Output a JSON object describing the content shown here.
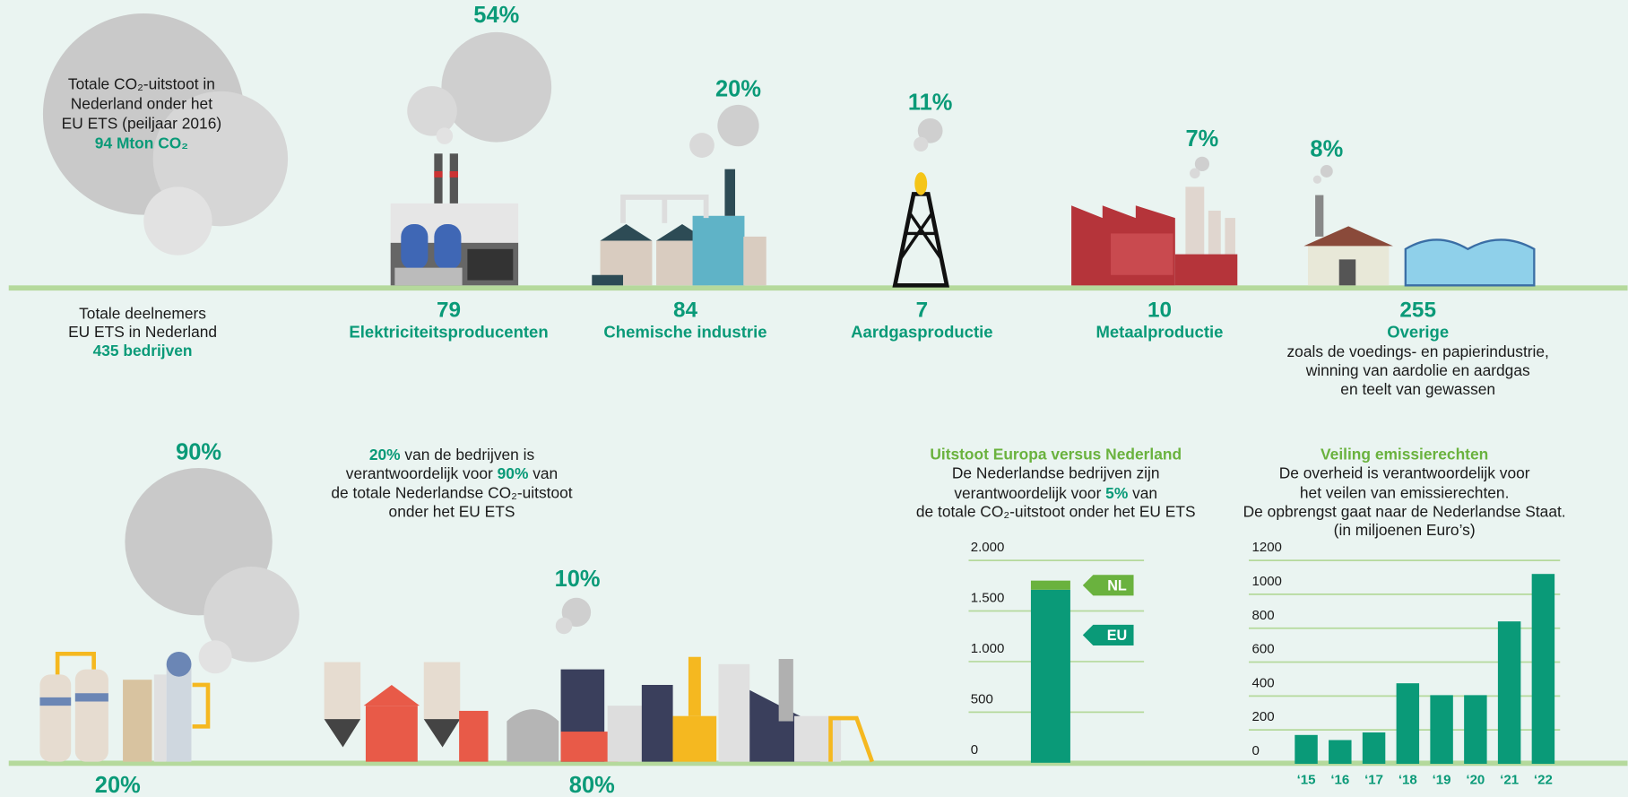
{
  "intro": {
    "lines": [
      "Totale CO₂-uitstoot in",
      "Nederland onder het",
      "EU ETS (peiljaar 2016)"
    ],
    "total": "94 Mton CO₂"
  },
  "participants": {
    "lines": [
      "Totale deelnemers",
      "EU ETS in Nederland"
    ],
    "total": "435 bedrijven"
  },
  "sectors": [
    {
      "share": "54%",
      "count": "79",
      "name": "Elektriciteitsproducenten"
    },
    {
      "share": "20%",
      "count": "84",
      "name": "Chemische industrie"
    },
    {
      "share": "11%",
      "count": "7",
      "name": "Aardgasproductie"
    },
    {
      "share": "7%",
      "count": "10",
      "name": "Metaalproductie"
    },
    {
      "share": "8%",
      "count": "255",
      "name": "Overige",
      "note": [
        "zoals de voedings- en papierindustrie,",
        "winning van aardolie en aardgas",
        "en teelt van gewassen"
      ]
    }
  ],
  "distribution": {
    "large_share": "90%",
    "large_companies": "20%",
    "small_share": "10%",
    "small_companies": "80%",
    "statement": {
      "line1": [
        "20%",
        " van de bedrijven is"
      ],
      "line2": [
        "verantwoordelijk voor ",
        "90%",
        " van"
      ],
      "line3": "de totale Nederlandse CO₂-uitstoot",
      "line4": "onder het EU ETS"
    }
  },
  "chart_data": [
    {
      "type": "bar",
      "title": "Uitstoot Europa versus Nederland",
      "subtitle": {
        "line1": "De Nederlandse bedrijven zijn",
        "line2": [
          "verantwoordelijk voor ",
          "5%",
          " van"
        ],
        "line3": "de totale CO₂-uitstoot onder het EU ETS"
      },
      "categories": [
        null
      ],
      "series": [
        {
          "name": "EU",
          "color": "#0a9a78",
          "values": [
            1710
          ]
        },
        {
          "name": "NL",
          "color": "#6ab23e",
          "values": [
            90
          ]
        }
      ],
      "stacked": true,
      "ylim": [
        0,
        2000
      ],
      "yticks": [
        0,
        500,
        {
          "value": 1000,
          "label": "1.000"
        },
        {
          "value": 1500,
          "label": "1.500"
        },
        {
          "value": 2000,
          "label": "2.000"
        }
      ],
      "grid": true
    },
    {
      "type": "bar",
      "title": "Veiling emissierechten",
      "subtitle": [
        "De overheid is verantwoordelijk voor",
        "het veilen van emissierechten.",
        "De opbrengst gaat naar de Nederlandse Staat.",
        "(in miljoenen Euro’s)"
      ],
      "categories": [
        "‘15",
        "‘16",
        "‘17",
        "‘18",
        "‘19",
        "‘20",
        "‘21",
        "‘22"
      ],
      "values": [
        170,
        140,
        185,
        475,
        405,
        405,
        840,
        1120
      ],
      "color": "#0a9a78",
      "ylim": [
        0,
        1200
      ],
      "yticks": [
        0,
        200,
        400,
        600,
        800,
        1000,
        1200
      ],
      "grid": true
    }
  ]
}
